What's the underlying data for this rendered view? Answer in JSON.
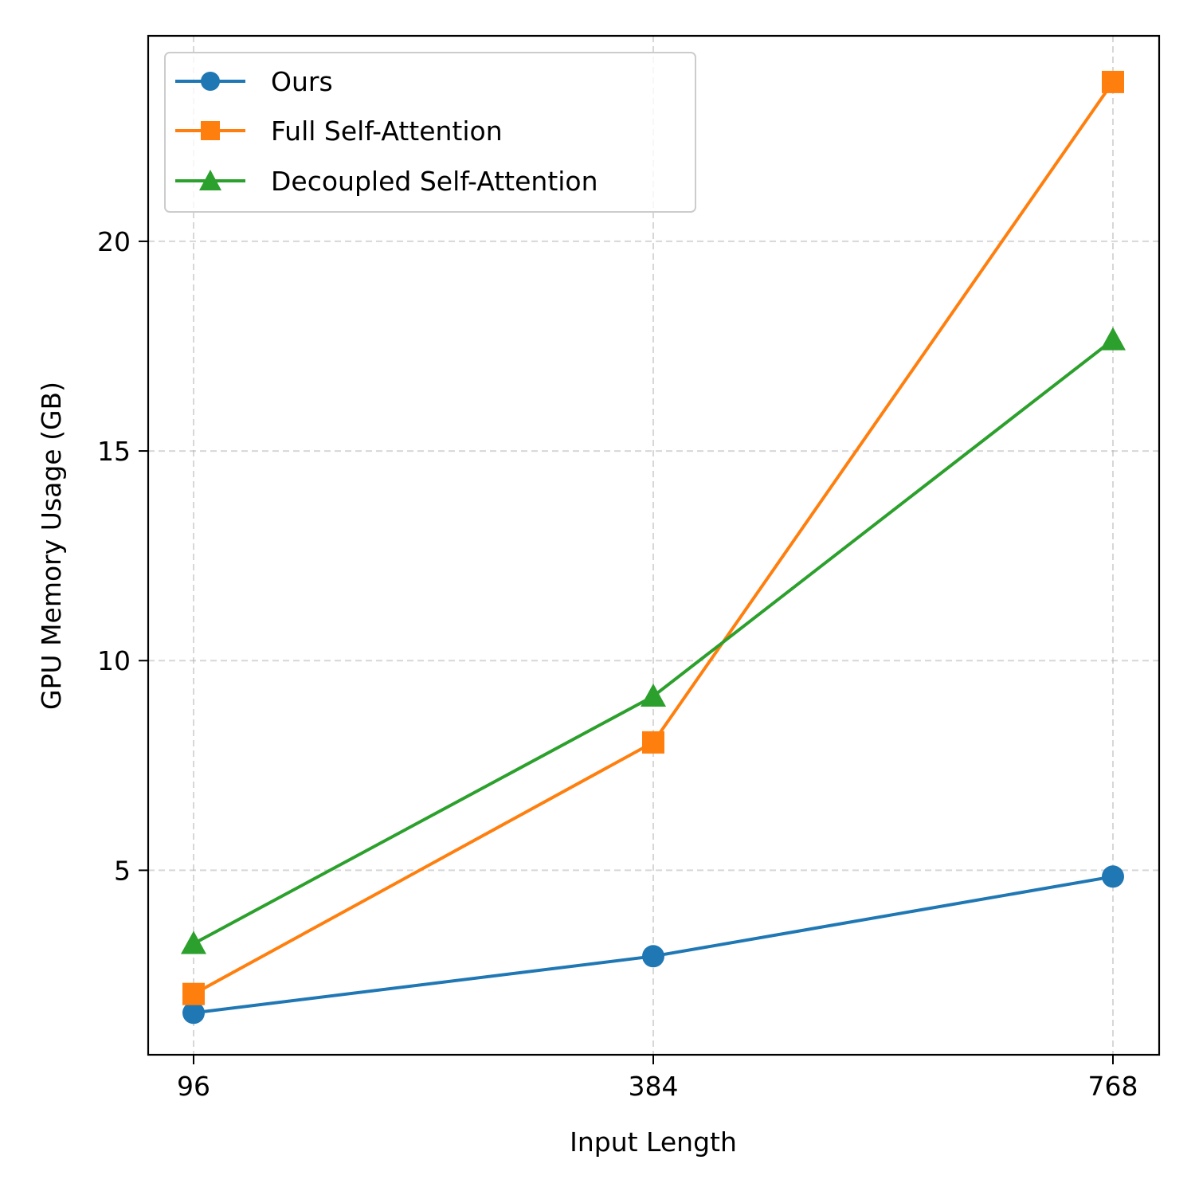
{
  "chart_data": {
    "type": "line",
    "title": "",
    "xlabel": "Input Length",
    "ylabel": "GPU Memory Usage (GB)",
    "categories": [
      "96",
      "384",
      "768"
    ],
    "ylim": [
      0.6,
      24.9
    ],
    "yticks": [
      5,
      10,
      15,
      20
    ],
    "grid": true,
    "legend_position": "top-left",
    "series": [
      {
        "name": "Ours",
        "values": [
          1.6,
          2.95,
          4.85
        ],
        "color": "#1f77b4",
        "marker": "circle"
      },
      {
        "name": "Full Self-Attention",
        "values": [
          2.05,
          8.05,
          23.8
        ],
        "color": "#ff7f0e",
        "marker": "square"
      },
      {
        "name": "Decoupled Self-Attention",
        "values": [
          3.25,
          9.15,
          17.65
        ],
        "color": "#2ca02c",
        "marker": "triangle"
      }
    ]
  }
}
